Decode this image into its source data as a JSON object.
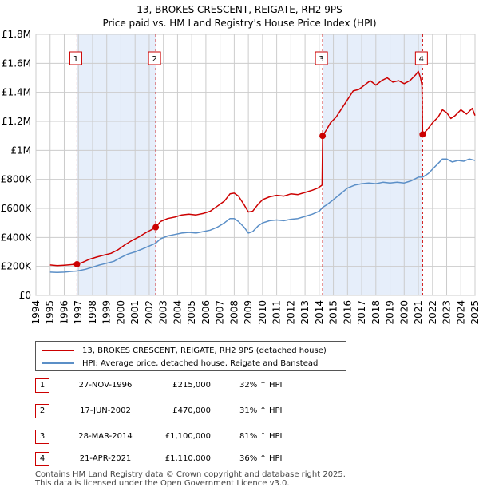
{
  "title_line1": "13, BROKES CRESCENT, REIGATE, RH2 9PS",
  "title_line2": "Price paid vs. HM Land Registry's House Price Index (HPI)",
  "chart_data": {
    "type": "line",
    "title": "13, BROKES CRESCENT, REIGATE, RH2 9PS — Price paid vs. HM Land Registry's House Price Index (HPI)",
    "xlabel": "",
    "ylabel": "",
    "xlim": [
      1994,
      2025
    ],
    "ylim": [
      0,
      1800000
    ],
    "y_ticks": [
      {
        "value": 0,
        "label": "£0"
      },
      {
        "value": 200000,
        "label": "£200K"
      },
      {
        "value": 400000,
        "label": "£400K"
      },
      {
        "value": 600000,
        "label": "£600K"
      },
      {
        "value": 800000,
        "label": "£800K"
      },
      {
        "value": 1000000,
        "label": "£1M"
      },
      {
        "value": 1200000,
        "label": "£1.2M"
      },
      {
        "value": 1400000,
        "label": "£1.4M"
      },
      {
        "value": 1600000,
        "label": "£1.6M"
      },
      {
        "value": 1800000,
        "label": "£1.8M"
      }
    ],
    "x_ticks": [
      "1994",
      "1995",
      "1996",
      "1997",
      "1998",
      "1999",
      "2000",
      "2001",
      "2002",
      "2003",
      "2004",
      "2005",
      "2006",
      "2007",
      "2008",
      "2009",
      "2010",
      "2011",
      "2012",
      "2013",
      "2014",
      "2015",
      "2016",
      "2017",
      "2018",
      "2019",
      "2020",
      "2021",
      "2022",
      "2023",
      "2024",
      "2025"
    ],
    "grid": true,
    "shaded_periods": [
      [
        1996.9,
        2002.46
      ],
      [
        2014.24,
        2021.3
      ]
    ],
    "series": [
      {
        "name": "13, BROKES CRESCENT, REIGATE, RH2 9PS (detached house)",
        "color": "#cc0000",
        "points": [
          [
            1995.0,
            210000
          ],
          [
            1995.5,
            205000
          ],
          [
            1996.0,
            208000
          ],
          [
            1996.5,
            212000
          ],
          [
            1996.9,
            215000
          ],
          [
            1997.3,
            228000
          ],
          [
            1997.8,
            250000
          ],
          [
            1998.3,
            265000
          ],
          [
            1998.8,
            278000
          ],
          [
            1999.3,
            290000
          ],
          [
            1999.8,
            315000
          ],
          [
            2000.3,
            350000
          ],
          [
            2000.8,
            380000
          ],
          [
            2001.3,
            405000
          ],
          [
            2001.8,
            435000
          ],
          [
            2002.2,
            455000
          ],
          [
            2002.46,
            470000
          ],
          [
            2002.8,
            510000
          ],
          [
            2003.3,
            530000
          ],
          [
            2003.8,
            540000
          ],
          [
            2004.3,
            555000
          ],
          [
            2004.8,
            560000
          ],
          [
            2005.3,
            555000
          ],
          [
            2005.8,
            565000
          ],
          [
            2006.3,
            580000
          ],
          [
            2006.8,
            615000
          ],
          [
            2007.3,
            650000
          ],
          [
            2007.7,
            700000
          ],
          [
            2008.0,
            705000
          ],
          [
            2008.3,
            685000
          ],
          [
            2008.7,
            625000
          ],
          [
            2009.0,
            575000
          ],
          [
            2009.3,
            580000
          ],
          [
            2009.7,
            630000
          ],
          [
            2010.0,
            660000
          ],
          [
            2010.5,
            680000
          ],
          [
            2011.0,
            690000
          ],
          [
            2011.5,
            685000
          ],
          [
            2012.0,
            700000
          ],
          [
            2012.5,
            695000
          ],
          [
            2013.0,
            710000
          ],
          [
            2013.5,
            725000
          ],
          [
            2013.9,
            740000
          ],
          [
            2014.2,
            760000
          ],
          [
            2014.24,
            1100000
          ],
          [
            2014.5,
            1140000
          ],
          [
            2014.8,
            1190000
          ],
          [
            2015.2,
            1230000
          ],
          [
            2015.6,
            1290000
          ],
          [
            2016.0,
            1350000
          ],
          [
            2016.4,
            1410000
          ],
          [
            2016.8,
            1420000
          ],
          [
            2017.2,
            1450000
          ],
          [
            2017.6,
            1480000
          ],
          [
            2018.0,
            1450000
          ],
          [
            2018.4,
            1480000
          ],
          [
            2018.8,
            1500000
          ],
          [
            2019.2,
            1470000
          ],
          [
            2019.6,
            1480000
          ],
          [
            2020.0,
            1460000
          ],
          [
            2020.4,
            1480000
          ],
          [
            2020.8,
            1520000
          ],
          [
            2021.0,
            1545000
          ],
          [
            2021.15,
            1500000
          ],
          [
            2021.25,
            1450000
          ],
          [
            2021.3,
            1110000
          ],
          [
            2021.6,
            1140000
          ],
          [
            2022.0,
            1190000
          ],
          [
            2022.4,
            1230000
          ],
          [
            2022.7,
            1280000
          ],
          [
            2023.0,
            1260000
          ],
          [
            2023.3,
            1220000
          ],
          [
            2023.6,
            1240000
          ],
          [
            2024.0,
            1280000
          ],
          [
            2024.4,
            1250000
          ],
          [
            2024.8,
            1290000
          ],
          [
            2025.0,
            1240000
          ]
        ]
      },
      {
        "name": "HPI: Average price, detached house, Reigate and Banstead",
        "color": "#5b8fc7",
        "points": [
          [
            1995.0,
            160000
          ],
          [
            1995.5,
            158000
          ],
          [
            1996.0,
            160000
          ],
          [
            1996.5,
            165000
          ],
          [
            1996.9,
            168000
          ],
          [
            1997.5,
            180000
          ],
          [
            1998.0,
            195000
          ],
          [
            1998.5,
            210000
          ],
          [
            1999.0,
            222000
          ],
          [
            1999.5,
            235000
          ],
          [
            2000.0,
            262000
          ],
          [
            2000.5,
            285000
          ],
          [
            2001.0,
            300000
          ],
          [
            2001.5,
            320000
          ],
          [
            2002.0,
            340000
          ],
          [
            2002.46,
            360000
          ],
          [
            2002.8,
            390000
          ],
          [
            2003.3,
            410000
          ],
          [
            2003.8,
            420000
          ],
          [
            2004.3,
            430000
          ],
          [
            2004.8,
            435000
          ],
          [
            2005.3,
            430000
          ],
          [
            2005.8,
            440000
          ],
          [
            2006.3,
            450000
          ],
          [
            2006.8,
            470000
          ],
          [
            2007.3,
            500000
          ],
          [
            2007.7,
            530000
          ],
          [
            2008.0,
            530000
          ],
          [
            2008.3,
            510000
          ],
          [
            2008.7,
            470000
          ],
          [
            2009.0,
            430000
          ],
          [
            2009.3,
            440000
          ],
          [
            2009.7,
            480000
          ],
          [
            2010.0,
            500000
          ],
          [
            2010.5,
            515000
          ],
          [
            2011.0,
            520000
          ],
          [
            2011.5,
            515000
          ],
          [
            2012.0,
            525000
          ],
          [
            2012.5,
            530000
          ],
          [
            2013.0,
            545000
          ],
          [
            2013.5,
            560000
          ],
          [
            2014.0,
            580000
          ],
          [
            2014.24,
            607000
          ],
          [
            2014.6,
            630000
          ],
          [
            2015.0,
            660000
          ],
          [
            2015.5,
            700000
          ],
          [
            2016.0,
            740000
          ],
          [
            2016.5,
            760000
          ],
          [
            2017.0,
            770000
          ],
          [
            2017.5,
            775000
          ],
          [
            2018.0,
            770000
          ],
          [
            2018.5,
            780000
          ],
          [
            2019.0,
            775000
          ],
          [
            2019.5,
            780000
          ],
          [
            2020.0,
            775000
          ],
          [
            2020.5,
            790000
          ],
          [
            2021.0,
            815000
          ],
          [
            2021.3,
            816000
          ],
          [
            2021.7,
            840000
          ],
          [
            2022.0,
            870000
          ],
          [
            2022.4,
            910000
          ],
          [
            2022.7,
            940000
          ],
          [
            2023.0,
            940000
          ],
          [
            2023.4,
            920000
          ],
          [
            2023.8,
            930000
          ],
          [
            2024.2,
            925000
          ],
          [
            2024.6,
            940000
          ],
          [
            2025.0,
            930000
          ]
        ]
      }
    ],
    "markers": [
      {
        "label": "1",
        "x": 1996.9,
        "y": 215000
      },
      {
        "label": "2",
        "x": 2002.46,
        "y": 470000
      },
      {
        "label": "3",
        "x": 2014.24,
        "y": 1100000
      },
      {
        "label": "4",
        "x": 2021.3,
        "y": 1110000
      }
    ]
  },
  "legend": {
    "items": [
      {
        "label": "13, BROKES CRESCENT, REIGATE, RH2 9PS (detached house)",
        "color": "#cc0000"
      },
      {
        "label": "HPI: Average price, detached house, Reigate and Banstead",
        "color": "#5b8fc7"
      }
    ]
  },
  "sales": [
    {
      "num": "1",
      "date": "27-NOV-1996",
      "price": "£215,000",
      "hpi": "32% ↑ HPI"
    },
    {
      "num": "2",
      "date": "17-JUN-2002",
      "price": "£470,000",
      "hpi": "31% ↑ HPI"
    },
    {
      "num": "3",
      "date": "28-MAR-2014",
      "price": "£1,100,000",
      "hpi": "81% ↑ HPI"
    },
    {
      "num": "4",
      "date": "21-APR-2021",
      "price": "£1,110,000",
      "hpi": "36% ↑ HPI"
    }
  ],
  "footer": {
    "line1": "Contains HM Land Registry data © Crown copyright and database right 2025.",
    "line2": "This data is licensed under the Open Government Licence v3.0."
  }
}
